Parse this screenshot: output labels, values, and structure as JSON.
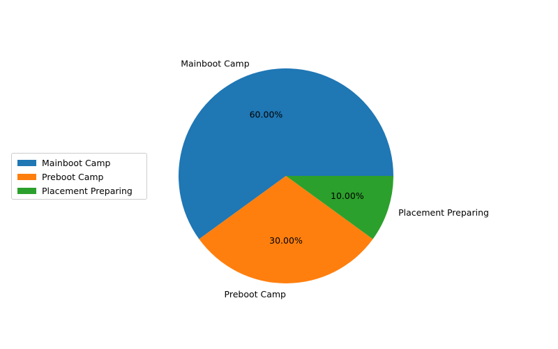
{
  "chart_data": {
    "type": "pie",
    "categories": [
      "Mainboot Camp",
      "Preboot Camp",
      "Placement Preparing"
    ],
    "values": [
      60,
      30,
      10
    ],
    "percent_labels": [
      "60.00%",
      "30.00%",
      "10.00%"
    ],
    "colors": [
      "#1f77b4",
      "#ff7f0e",
      "#2ca02c"
    ],
    "title": "",
    "legend_placement": "center-left",
    "start_angle_deg": 0,
    "direction": "counterclockwise"
  }
}
